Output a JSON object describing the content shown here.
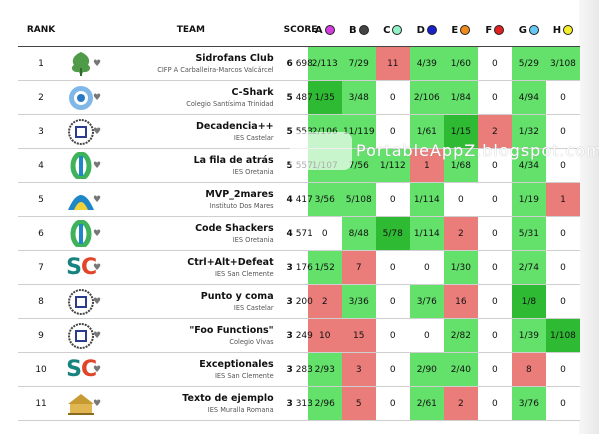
{
  "headers": {
    "rank": "RANK",
    "team": "TEAM",
    "score": "SCORE"
  },
  "problems": [
    {
      "letter": "A",
      "color": "#d43ce0"
    },
    {
      "letter": "B",
      "color": "#444444"
    },
    {
      "letter": "C",
      "color": "#90f0c6"
    },
    {
      "letter": "D",
      "color": "#1a20c8"
    },
    {
      "letter": "E",
      "color": "#f08b1a"
    },
    {
      "letter": "F",
      "color": "#e12020"
    },
    {
      "letter": "G",
      "color": "#68c8f5"
    },
    {
      "letter": "H",
      "color": "#f4ef2a"
    }
  ],
  "rows": [
    {
      "rank": "1",
      "name": "Sidrofans Club",
      "school": "CIFP A Carballeira-Marcos Valcárcel",
      "solved": "6",
      "score": "698",
      "cells": [
        [
          "2/113",
          "ok"
        ],
        [
          "7/29",
          "ok"
        ],
        [
          "11",
          "bad"
        ],
        [
          "4/39",
          "ok"
        ],
        [
          "1/60",
          "ok"
        ],
        [
          "0",
          "empty"
        ],
        [
          "5/29",
          "ok"
        ],
        [
          "3/108",
          "ok"
        ]
      ]
    },
    {
      "rank": "2",
      "name": "C-Shark",
      "school": "Colegio Santísima Trinidad",
      "solved": "5",
      "score": "487",
      "cells": [
        [
          "1/35",
          "first"
        ],
        [
          "3/48",
          "ok"
        ],
        [
          "0",
          "empty"
        ],
        [
          "2/106",
          "ok"
        ],
        [
          "1/84",
          "ok"
        ],
        [
          "0",
          "empty"
        ],
        [
          "4/94",
          "ok"
        ],
        [
          "0",
          "empty"
        ]
      ]
    },
    {
      "rank": "3",
      "name": "Decadencia++",
      "school": "IES Castelar",
      "solved": "5",
      "score": "553",
      "cells": [
        [
          "2/106",
          "ok"
        ],
        [
          "11/119",
          "ok"
        ],
        [
          "0",
          "empty"
        ],
        [
          "1/61",
          "ok"
        ],
        [
          "1/15",
          "first"
        ],
        [
          "2",
          "bad"
        ],
        [
          "1/32",
          "ok"
        ],
        [
          "0",
          "empty"
        ]
      ]
    },
    {
      "rank": "4",
      "name": "La fila de atrás",
      "school": "IES Oretania",
      "solved": "5",
      "score": "557",
      "cells": [
        [
          "1/107",
          "ok"
        ],
        [
          "7/56",
          "ok"
        ],
        [
          "1/112",
          "ok"
        ],
        [
          "1",
          "bad"
        ],
        [
          "1/68",
          "ok"
        ],
        [
          "0",
          "empty"
        ],
        [
          "4/34",
          "ok"
        ],
        [
          "0",
          "empty"
        ]
      ]
    },
    {
      "rank": "5",
      "name": "MVP_2mares",
      "school": "Instituto Dos Mares",
      "solved": "4",
      "score": "417",
      "cells": [
        [
          "3/56",
          "ok"
        ],
        [
          "5/108",
          "ok"
        ],
        [
          "0",
          "empty"
        ],
        [
          "1/114",
          "ok"
        ],
        [
          "0",
          "empty"
        ],
        [
          "0",
          "empty"
        ],
        [
          "1/19",
          "ok"
        ],
        [
          "1",
          "bad"
        ]
      ]
    },
    {
      "rank": "6",
      "name": "Code Shackers",
      "school": "IES Oretania",
      "solved": "4",
      "score": "571",
      "cells": [
        [
          "0",
          "empty"
        ],
        [
          "8/48",
          "ok"
        ],
        [
          "5/78",
          "first"
        ],
        [
          "1/114",
          "ok"
        ],
        [
          "2",
          "bad"
        ],
        [
          "0",
          "empty"
        ],
        [
          "5/31",
          "ok"
        ],
        [
          "0",
          "empty"
        ]
      ]
    },
    {
      "rank": "7",
      "name": "Ctrl+Alt+Defeat",
      "school": "IES San Clemente",
      "solved": "3",
      "score": "176",
      "cells": [
        [
          "1/52",
          "ok"
        ],
        [
          "7",
          "bad"
        ],
        [
          "0",
          "empty"
        ],
        [
          "0",
          "empty"
        ],
        [
          "1/30",
          "ok"
        ],
        [
          "0",
          "empty"
        ],
        [
          "2/74",
          "ok"
        ],
        [
          "0",
          "empty"
        ]
      ]
    },
    {
      "rank": "8",
      "name": "Punto y coma",
      "school": "IES Castelar",
      "solved": "3",
      "score": "200",
      "cells": [
        [
          "2",
          "bad"
        ],
        [
          "3/36",
          "ok"
        ],
        [
          "0",
          "empty"
        ],
        [
          "3/76",
          "ok"
        ],
        [
          "16",
          "bad"
        ],
        [
          "0",
          "empty"
        ],
        [
          "1/8",
          "first"
        ],
        [
          "0",
          "empty"
        ]
      ]
    },
    {
      "rank": "9",
      "name": "\"Foo Functions\"",
      "school": "Colegio Vivas",
      "solved": "3",
      "score": "249",
      "cells": [
        [
          "10",
          "bad"
        ],
        [
          "15",
          "bad"
        ],
        [
          "0",
          "empty"
        ],
        [
          "0",
          "empty"
        ],
        [
          "2/82",
          "ok"
        ],
        [
          "0",
          "empty"
        ],
        [
          "1/39",
          "ok"
        ],
        [
          "1/108",
          "first"
        ]
      ]
    },
    {
      "rank": "10",
      "name": "Exceptionales",
      "school": "IES San Clemente",
      "solved": "3",
      "score": "283",
      "cells": [
        [
          "2/93",
          "ok"
        ],
        [
          "3",
          "bad"
        ],
        [
          "0",
          "empty"
        ],
        [
          "2/90",
          "ok"
        ],
        [
          "2/40",
          "ok"
        ],
        [
          "0",
          "empty"
        ],
        [
          "8",
          "bad"
        ],
        [
          "0",
          "empty"
        ]
      ]
    },
    {
      "rank": "11",
      "name": "Texto de ejemplo",
      "school": "IES Muralla Romana",
      "solved": "3",
      "score": "313",
      "cells": [
        [
          "2/96",
          "ok"
        ],
        [
          "5",
          "bad"
        ],
        [
          "0",
          "empty"
        ],
        [
          "2/61",
          "ok"
        ],
        [
          "2",
          "bad"
        ],
        [
          "0",
          "empty"
        ],
        [
          "3/76",
          "ok"
        ],
        [
          "0",
          "empty"
        ]
      ]
    }
  ],
  "logos": [
    "oak",
    "badge-blue",
    "crest",
    "green-o",
    "wave",
    "green-o",
    "sc",
    "crest",
    "tower",
    "sc",
    "building"
  ],
  "watermark": "PortableAppZ.blogspot.com"
}
